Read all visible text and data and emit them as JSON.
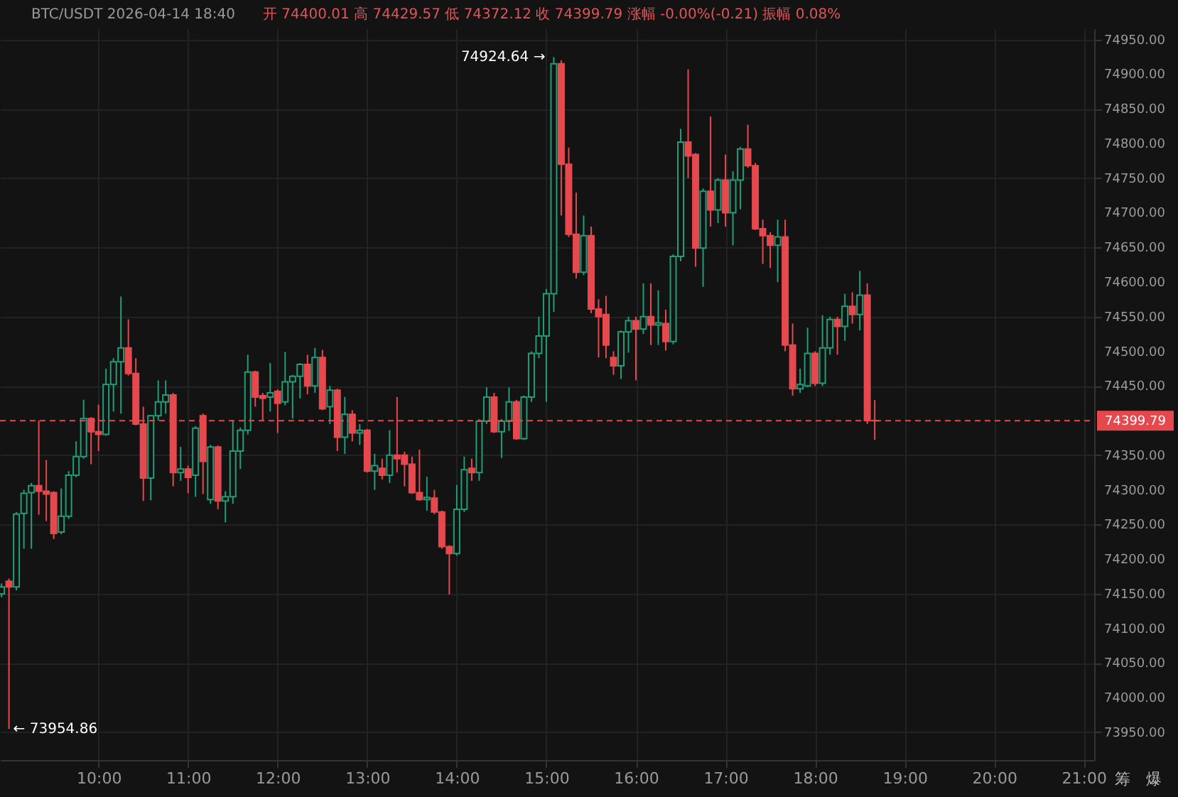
{
  "chart_data": {
    "type": "candlestick",
    "title": "BTC/USDT 2026-04-14 18:40",
    "subtitle": "开 74400.01 高 74429.57 低 74372.12 收 74399.79 涨幅 -0.00%(-0.21) 振幅 0.08%",
    "x": [
      "2026-04-14T08:55",
      "2026-04-14T09:00",
      "2026-04-14T09:05",
      "2026-04-14T09:10",
      "2026-04-14T09:15",
      "2026-04-14T09:20",
      "2026-04-14T09:25",
      "2026-04-14T09:30",
      "2026-04-14T09:35",
      "2026-04-14T09:40",
      "2026-04-14T09:45",
      "2026-04-14T09:50",
      "2026-04-14T09:55",
      "2026-04-14T10:00",
      "2026-04-14T10:05",
      "2026-04-14T10:10",
      "2026-04-14T10:15",
      "2026-04-14T10:20",
      "2026-04-14T10:25",
      "2026-04-14T10:30",
      "2026-04-14T10:35",
      "2026-04-14T10:40",
      "2026-04-14T10:45",
      "2026-04-14T10:50",
      "2026-04-14T10:55",
      "2026-04-14T11:00",
      "2026-04-14T11:05",
      "2026-04-14T11:10",
      "2026-04-14T11:15",
      "2026-04-14T11:20",
      "2026-04-14T11:25",
      "2026-04-14T11:30",
      "2026-04-14T11:35",
      "2026-04-14T11:40",
      "2026-04-14T11:45",
      "2026-04-14T11:50",
      "2026-04-14T11:55",
      "2026-04-14T12:00",
      "2026-04-14T12:05",
      "2026-04-14T12:10",
      "2026-04-14T12:15",
      "2026-04-14T12:20",
      "2026-04-14T12:25",
      "2026-04-14T12:30",
      "2026-04-14T12:35",
      "2026-04-14T12:40",
      "2026-04-14T12:45",
      "2026-04-14T12:50",
      "2026-04-14T12:55",
      "2026-04-14T13:00",
      "2026-04-14T13:05",
      "2026-04-14T13:10",
      "2026-04-14T13:15",
      "2026-04-14T13:20",
      "2026-04-14T13:25",
      "2026-04-14T13:30",
      "2026-04-14T13:35",
      "2026-04-14T13:40",
      "2026-04-14T13:45",
      "2026-04-14T13:50",
      "2026-04-14T13:55",
      "2026-04-14T14:00",
      "2026-04-14T14:05",
      "2026-04-14T14:10",
      "2026-04-14T14:15",
      "2026-04-14T14:20",
      "2026-04-14T14:25",
      "2026-04-14T14:30",
      "2026-04-14T14:35",
      "2026-04-14T14:40",
      "2026-04-14T14:45",
      "2026-04-14T14:50",
      "2026-04-14T14:55",
      "2026-04-14T15:00",
      "2026-04-14T15:05",
      "2026-04-14T15:10",
      "2026-04-14T15:15",
      "2026-04-14T15:20",
      "2026-04-14T15:25",
      "2026-04-14T15:30",
      "2026-04-14T15:35",
      "2026-04-14T15:40",
      "2026-04-14T15:45",
      "2026-04-14T15:50",
      "2026-04-14T15:55",
      "2026-04-14T16:00",
      "2026-04-14T16:05",
      "2026-04-14T16:10",
      "2026-04-14T16:15",
      "2026-04-14T16:20",
      "2026-04-14T16:25",
      "2026-04-14T16:30",
      "2026-04-14T16:35",
      "2026-04-14T16:40",
      "2026-04-14T16:45",
      "2026-04-14T16:50",
      "2026-04-14T16:55",
      "2026-04-14T17:00",
      "2026-04-14T17:05",
      "2026-04-14T17:10",
      "2026-04-14T17:15",
      "2026-04-14T17:20",
      "2026-04-14T17:25",
      "2026-04-14T17:30",
      "2026-04-14T17:35",
      "2026-04-14T17:40",
      "2026-04-14T17:45",
      "2026-04-14T17:50",
      "2026-04-14T17:55",
      "2026-04-14T18:00",
      "2026-04-14T18:05",
      "2026-04-14T18:10",
      "2026-04-14T18:15",
      "2026-04-14T18:20",
      "2026-04-14T18:25",
      "2026-04-14T18:30",
      "2026-04-14T18:35",
      "2026-04-14T18:40"
    ],
    "ohlc": [
      [
        74150,
        74165,
        74145,
        74160
      ],
      [
        74168,
        74172,
        73954.86,
        74160
      ],
      [
        74160,
        74268,
        74155,
        74265
      ],
      [
        74266,
        74300,
        74215,
        74295
      ],
      [
        74296,
        74310,
        74215,
        74306
      ],
      [
        74306,
        74400,
        74264,
        74298
      ],
      [
        74298,
        74343,
        74255,
        74294
      ],
      [
        74296,
        74298,
        74229,
        74237
      ],
      [
        74239,
        74302,
        74236,
        74262
      ],
      [
        74262,
        74327,
        74258,
        74321
      ],
      [
        74321,
        74370,
        74318,
        74348
      ],
      [
        74348,
        74430,
        74345,
        74403
      ],
      [
        74403,
        74405,
        74337,
        74384
      ],
      [
        74384,
        74423,
        74356,
        74380
      ],
      [
        74380,
        74475,
        74378,
        74452
      ],
      [
        74452,
        74490,
        74413,
        74485
      ],
      [
        74485,
        74579,
        74410,
        74505
      ],
      [
        74505,
        74546,
        74465,
        74468
      ],
      [
        74468,
        74490,
        74393,
        74395
      ],
      [
        74395,
        74420,
        74284,
        74317
      ],
      [
        74317,
        74408,
        74285,
        74407
      ],
      [
        74407,
        74458,
        74400,
        74427
      ],
      [
        74427,
        74458,
        74410,
        74437
      ],
      [
        74437,
        74440,
        74305,
        74325
      ],
      [
        74325,
        74362,
        74313,
        74330
      ],
      [
        74330,
        74335,
        74295,
        74318
      ],
      [
        74321,
        74392,
        74290,
        74389
      ],
      [
        74407,
        74410,
        74294,
        74341
      ],
      [
        74286,
        74365,
        74280,
        74362
      ],
      [
        74362,
        74364,
        74272,
        74284
      ],
      [
        74284,
        74298,
        74253,
        74290
      ],
      [
        74290,
        74399,
        74280,
        74356
      ],
      [
        74356,
        74390,
        74330,
        74386
      ],
      [
        74386,
        74495,
        74380,
        74470
      ],
      [
        74470,
        74472,
        74420,
        74434
      ],
      [
        74436,
        74440,
        74399,
        74432
      ],
      [
        74434,
        74483,
        74413,
        74440
      ],
      [
        74442,
        74445,
        74382,
        74425
      ],
      [
        74427,
        74499,
        74422,
        74456
      ],
      [
        74456,
        74466,
        74403,
        74464
      ],
      [
        74464,
        74483,
        74432,
        74481
      ],
      [
        74481,
        74495,
        74438,
        74450
      ],
      [
        74450,
        74505,
        74440,
        74491
      ],
      [
        74491,
        74502,
        74415,
        74417
      ],
      [
        74420,
        74450,
        74395,
        74444
      ],
      [
        74444,
        74446,
        74356,
        74376
      ],
      [
        74376,
        74434,
        74352,
        74409
      ],
      [
        74409,
        74415,
        74370,
        74382
      ],
      [
        74382,
        74395,
        74365,
        74386
      ],
      [
        74386,
        74388,
        74325,
        74327
      ],
      [
        74327,
        74352,
        74300,
        74335
      ],
      [
        74331,
        74345,
        74315,
        74321
      ],
      [
        74321,
        74386,
        74310,
        74350
      ],
      [
        74350,
        74434,
        74325,
        74345
      ],
      [
        74350,
        74355,
        74305,
        74337
      ],
      [
        74337,
        74348,
        74294,
        74296
      ],
      [
        74296,
        74358,
        74284,
        74286
      ],
      [
        74286,
        74319,
        74270,
        74289
      ],
      [
        74288,
        74300,
        74265,
        74268
      ],
      [
        74268,
        74270,
        74215,
        74218
      ],
      [
        74218,
        74220,
        74149,
        74208
      ],
      [
        74208,
        74307,
        74205,
        74272
      ],
      [
        74272,
        74348,
        74268,
        74329
      ],
      [
        74331,
        74345,
        74313,
        74325
      ],
      [
        74325,
        74402,
        74313,
        74399
      ],
      [
        74399,
        74448,
        74395,
        74434
      ],
      [
        74434,
        74440,
        74382,
        74384
      ],
      [
        74384,
        74402,
        74346,
        74399
      ],
      [
        74399,
        74448,
        74385,
        74427
      ],
      [
        74427,
        74430,
        74372,
        74374
      ],
      [
        74374,
        74436,
        74372,
        74434
      ],
      [
        74434,
        74500,
        74427,
        74497
      ],
      [
        74497,
        74550,
        74490,
        74522
      ],
      [
        74522,
        74590,
        74427,
        74583
      ],
      [
        74583,
        74924.64,
        74557,
        74915
      ],
      [
        74915,
        74920,
        74696,
        74770
      ],
      [
        74770,
        74794,
        74665,
        74669
      ],
      [
        74669,
        74729,
        74605,
        74614
      ],
      [
        74614,
        74696,
        74610,
        74667
      ],
      [
        74667,
        74680,
        74555,
        74561
      ],
      [
        74561,
        74575,
        74491,
        74550
      ],
      [
        74553,
        74580,
        74490,
        74509
      ],
      [
        74491,
        74500,
        74466,
        74479
      ],
      [
        74479,
        74530,
        74460,
        74528
      ],
      [
        74528,
        74550,
        74498,
        74544
      ],
      [
        74544,
        74550,
        74458,
        74532
      ],
      [
        74532,
        74598,
        74525,
        74550
      ],
      [
        74550,
        74598,
        74509,
        74538
      ],
      [
        74538,
        74588,
        74509,
        74541
      ],
      [
        74540,
        74560,
        74501,
        74514
      ],
      [
        74514,
        74640,
        74510,
        74637
      ],
      [
        74637,
        74821,
        74630,
        74802
      ],
      [
        74802,
        74907,
        74750,
        74782
      ],
      [
        74784,
        74786,
        74622,
        74649
      ],
      [
        74649,
        74735,
        74593,
        74731
      ],
      [
        74731,
        74839,
        74680,
        74704
      ],
      [
        74704,
        74750,
        74685,
        74747
      ],
      [
        74747,
        74784,
        74680,
        74700
      ],
      [
        74700,
        74760,
        74653,
        74747
      ],
      [
        74747,
        74795,
        74705,
        74792
      ],
      [
        74792,
        74827,
        74765,
        74768
      ],
      [
        74768,
        74772,
        74675,
        74677
      ],
      [
        74677,
        74690,
        74626,
        74667
      ],
      [
        74667,
        74672,
        74620,
        74653
      ],
      [
        74653,
        74690,
        74600,
        74665
      ],
      [
        74665,
        74690,
        74500,
        74509
      ],
      [
        74509,
        74540,
        74436,
        74446
      ],
      [
        74446,
        74475,
        74440,
        74452
      ],
      [
        74450,
        74534,
        74448,
        74497
      ],
      [
        74497,
        74500,
        74450,
        74454
      ],
      [
        74454,
        74552,
        74450,
        74505
      ],
      [
        74505,
        74550,
        74495,
        74546
      ],
      [
        74546,
        74550,
        74495,
        74536
      ],
      [
        74536,
        74583,
        74515,
        74565
      ],
      [
        74565,
        74585,
        74540,
        74553
      ],
      [
        74553,
        74616,
        74530,
        74581
      ],
      [
        74581,
        74598,
        74395,
        74400
      ],
      [
        74400.01,
        74429.57,
        74372.12,
        74399.79
      ]
    ],
    "xlim": [
      "2026-04-14T08:54",
      "2026-04-14T21:07"
    ],
    "xticks": [
      {
        "value": "2026-04-14T10:00",
        "label": "10:00"
      },
      {
        "value": "2026-04-14T11:00",
        "label": "11:00"
      },
      {
        "value": "2026-04-14T12:00",
        "label": "12:00"
      },
      {
        "value": "2026-04-14T13:00",
        "label": "13:00"
      },
      {
        "value": "2026-04-14T14:00",
        "label": "14:00"
      },
      {
        "value": "2026-04-14T15:00",
        "label": "15:00"
      },
      {
        "value": "2026-04-14T16:00",
        "label": "16:00"
      },
      {
        "value": "2026-04-14T17:00",
        "label": "17:00"
      },
      {
        "value": "2026-04-14T18:00",
        "label": "18:00"
      },
      {
        "value": "2026-04-14T19:00",
        "label": "19:00"
      },
      {
        "value": "2026-04-14T20:00",
        "label": "20:00"
      },
      {
        "value": "2026-04-14T21:00",
        "label": "21:00"
      }
    ],
    "ylim": [
      73910,
      74966
    ],
    "yticks": [
      {
        "value": 73950,
        "label": "73950.00"
      },
      {
        "value": 74000,
        "label": "74000.00"
      },
      {
        "value": 74050,
        "label": "74050.00"
      },
      {
        "value": 74100,
        "label": "74100.00"
      },
      {
        "value": 74150,
        "label": "74150.00"
      },
      {
        "value": 74200,
        "label": "74200.00"
      },
      {
        "value": 74250,
        "label": "74250.00"
      },
      {
        "value": 74300,
        "label": "74300.00"
      },
      {
        "value": 74350,
        "label": "74350.00"
      },
      {
        "value": 74400,
        "label": null
      },
      {
        "value": 74450,
        "label": "74450.00"
      },
      {
        "value": 74500,
        "label": "74500.00"
      },
      {
        "value": 74550,
        "label": "74550.00"
      },
      {
        "value": 74600,
        "label": "74600.00"
      },
      {
        "value": 74650,
        "label": "74650.00"
      },
      {
        "value": 74700,
        "label": "74700.00"
      },
      {
        "value": 74750,
        "label": "74750.00"
      },
      {
        "value": 74800,
        "label": "74800.00"
      },
      {
        "value": 74850,
        "label": "74850.00"
      },
      {
        "value": 74900,
        "label": "74900.00"
      },
      {
        "value": 74950,
        "label": "74950.00"
      }
    ],
    "grid": true,
    "ref_lines": [
      {
        "axis": "y",
        "value": 74399.79,
        "label": "74399.79",
        "color": "#e5484d",
        "line_style": "dashed"
      }
    ],
    "annotations": [
      {
        "text": "74924.64 →",
        "x": "2026-04-14T15:05",
        "y": 74924.64
      },
      {
        "text": "← 73954.86",
        "x": "2026-04-14T09:00",
        "y": 73954.86
      },
      "筹",
      "爆"
    ]
  }
}
